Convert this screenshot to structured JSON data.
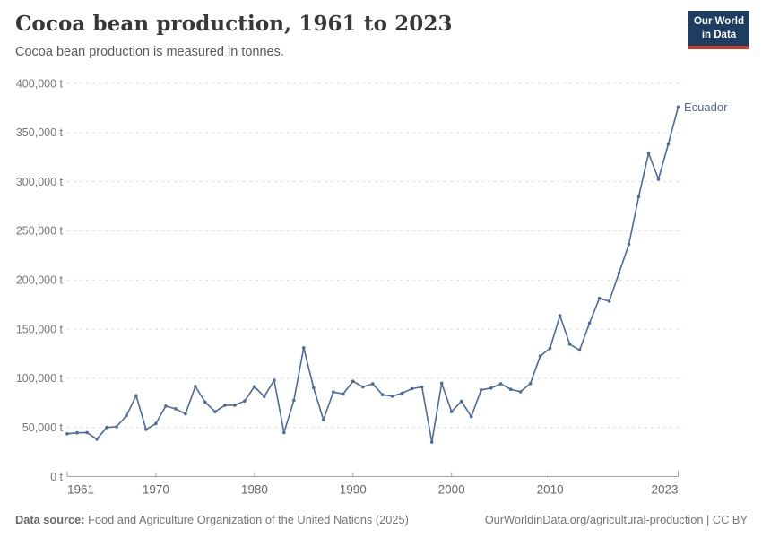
{
  "header": {
    "title": "Cocoa bean production, 1961 to 2023",
    "subtitle": "Cocoa bean production is measured in tonnes."
  },
  "logo": {
    "line1": "Our World",
    "line2": "in Data",
    "bg_color": "#1d3d63",
    "bar_color": "#cc3b2e"
  },
  "chart_data": {
    "type": "line",
    "title": "Cocoa bean production, 1961 to 2023",
    "unit": "tonnes",
    "x": [
      1961,
      1962,
      1963,
      1964,
      1965,
      1966,
      1967,
      1968,
      1969,
      1970,
      1971,
      1972,
      1973,
      1974,
      1975,
      1976,
      1977,
      1978,
      1979,
      1980,
      1981,
      1982,
      1983,
      1984,
      1985,
      1986,
      1987,
      1988,
      1989,
      1990,
      1991,
      1992,
      1993,
      1994,
      1995,
      1996,
      1997,
      1998,
      1999,
      2000,
      2001,
      2002,
      2003,
      2004,
      2005,
      2006,
      2007,
      2008,
      2009,
      2010,
      2011,
      2012,
      2013,
      2014,
      2015,
      2016,
      2017,
      2018,
      2019,
      2020,
      2021,
      2022,
      2023
    ],
    "series": [
      {
        "name": "Ecuador",
        "color": "#4c6a9c",
        "values": [
          43500,
          44500,
          44800,
          38000,
          50000,
          50700,
          61900,
          82400,
          48000,
          53900,
          71700,
          69000,
          63800,
          91800,
          75700,
          66000,
          72600,
          72600,
          76900,
          91500,
          81500,
          98000,
          44700,
          77500,
          131000,
          90300,
          57800,
          86000,
          84000,
          97000,
          91200,
          94300,
          83300,
          81700,
          84900,
          89400,
          91200,
          35000,
          95000,
          66000,
          76500,
          61000,
          88200,
          90000,
          94300,
          88800,
          86300,
          94600,
          122500,
          130600,
          163700,
          134600,
          128700,
          156100,
          181300,
          178300,
          207100,
          236300,
          284900,
          328900,
          302500,
          338300,
          376000
        ]
      }
    ],
    "ylim": [
      0,
      400000
    ],
    "yticks": [
      0,
      50000,
      100000,
      150000,
      200000,
      250000,
      300000,
      350000,
      400000
    ],
    "ytick_suffix": " t",
    "xticks": [
      1961,
      1970,
      1980,
      1990,
      2000,
      2010,
      2023
    ],
    "grid": "horizontal-dashed",
    "legend_position": "end-of-line-label"
  },
  "colors": {
    "line": "#4c6a9c",
    "grid": "#dddddd",
    "axis": "#a1a1a1",
    "xtick_label": "#666666",
    "ytick_label": "#777777"
  },
  "footer": {
    "source_label": "Data source:",
    "source_text": " Food and Agriculture Organization of the United Nations (2025)",
    "credit": "OurWorldinData.org/agricultural-production | CC BY"
  }
}
